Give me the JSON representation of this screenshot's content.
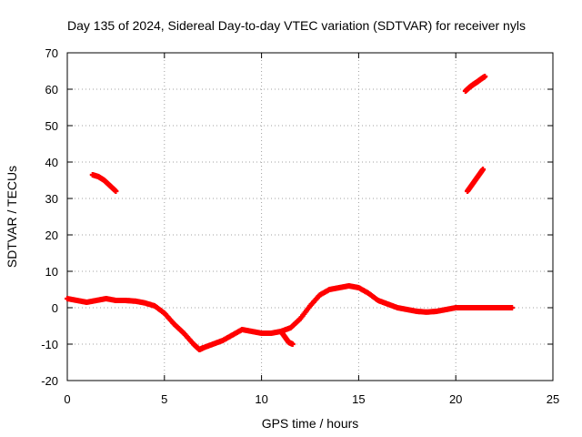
{
  "chart_data": {
    "type": "scatter",
    "title": "Day 135 of 2024, Sidereal Day-to-day VTEC variation (SDTVAR) for receiver nyls",
    "xlabel": "GPS time / hours",
    "ylabel": "SDTVAR / TECUs",
    "xlim": [
      0,
      25
    ],
    "ylim": [
      -20,
      70
    ],
    "xticks": [
      0,
      5,
      10,
      15,
      20,
      25
    ],
    "yticks": [
      -20,
      -10,
      0,
      10,
      20,
      30,
      40,
      50,
      60,
      70
    ],
    "grid": true,
    "marker": "plus",
    "color": "#ff0000",
    "series": [
      {
        "name": "main",
        "x": [
          0.0,
          0.5,
          1.0,
          1.5,
          2.0,
          2.5,
          3.0,
          3.5,
          4.0,
          4.5,
          5.0,
          5.5,
          6.0,
          6.5,
          6.8,
          7.0,
          7.5,
          8.0,
          8.5,
          9.0,
          9.5,
          10.0,
          10.5,
          11.0,
          11.5,
          12.0,
          12.5,
          13.0,
          13.5,
          14.0,
          14.5,
          15.0,
          15.5,
          16.0,
          16.5,
          17.0,
          17.5,
          18.0,
          18.5,
          19.0,
          19.5,
          20.0,
          20.5,
          21.0,
          21.5,
          22.0,
          22.5,
          22.9
        ],
        "y": [
          2.5,
          2.0,
          1.5,
          2.0,
          2.5,
          2.0,
          2.0,
          1.8,
          1.3,
          0.5,
          -1.5,
          -4.5,
          -7.0,
          -10.0,
          -11.5,
          -11.0,
          -10.0,
          -9.0,
          -7.5,
          -6.0,
          -6.5,
          -7.0,
          -7.0,
          -6.5,
          -5.5,
          -3.0,
          0.5,
          3.5,
          5.0,
          5.5,
          6.0,
          5.5,
          4.0,
          2.0,
          1.0,
          0.0,
          -0.5,
          -1.0,
          -1.2,
          -1.0,
          -0.5,
          0.0,
          0.0,
          0.0,
          0.0,
          0.0,
          0.0,
          0.0
        ]
      },
      {
        "name": "drop-near-11",
        "x": [
          11.0,
          11.2,
          11.4,
          11.6
        ],
        "y": [
          -6.5,
          -8.0,
          -9.5,
          -10.0
        ]
      },
      {
        "name": "arc-1",
        "x": [
          1.3,
          1.6,
          1.9,
          2.2,
          2.5
        ],
        "y": [
          36.5,
          36.0,
          35.0,
          33.5,
          32.0
        ]
      },
      {
        "name": "arc-2",
        "x": [
          20.6,
          20.8,
          21.0,
          21.2,
          21.4
        ],
        "y": [
          32.0,
          33.5,
          35.0,
          36.5,
          38.0
        ]
      },
      {
        "name": "arc-3",
        "x": [
          20.5,
          20.7,
          20.9,
          21.1,
          21.3,
          21.5
        ],
        "y": [
          59.5,
          60.5,
          61.3,
          62.0,
          62.8,
          63.5
        ]
      }
    ]
  }
}
